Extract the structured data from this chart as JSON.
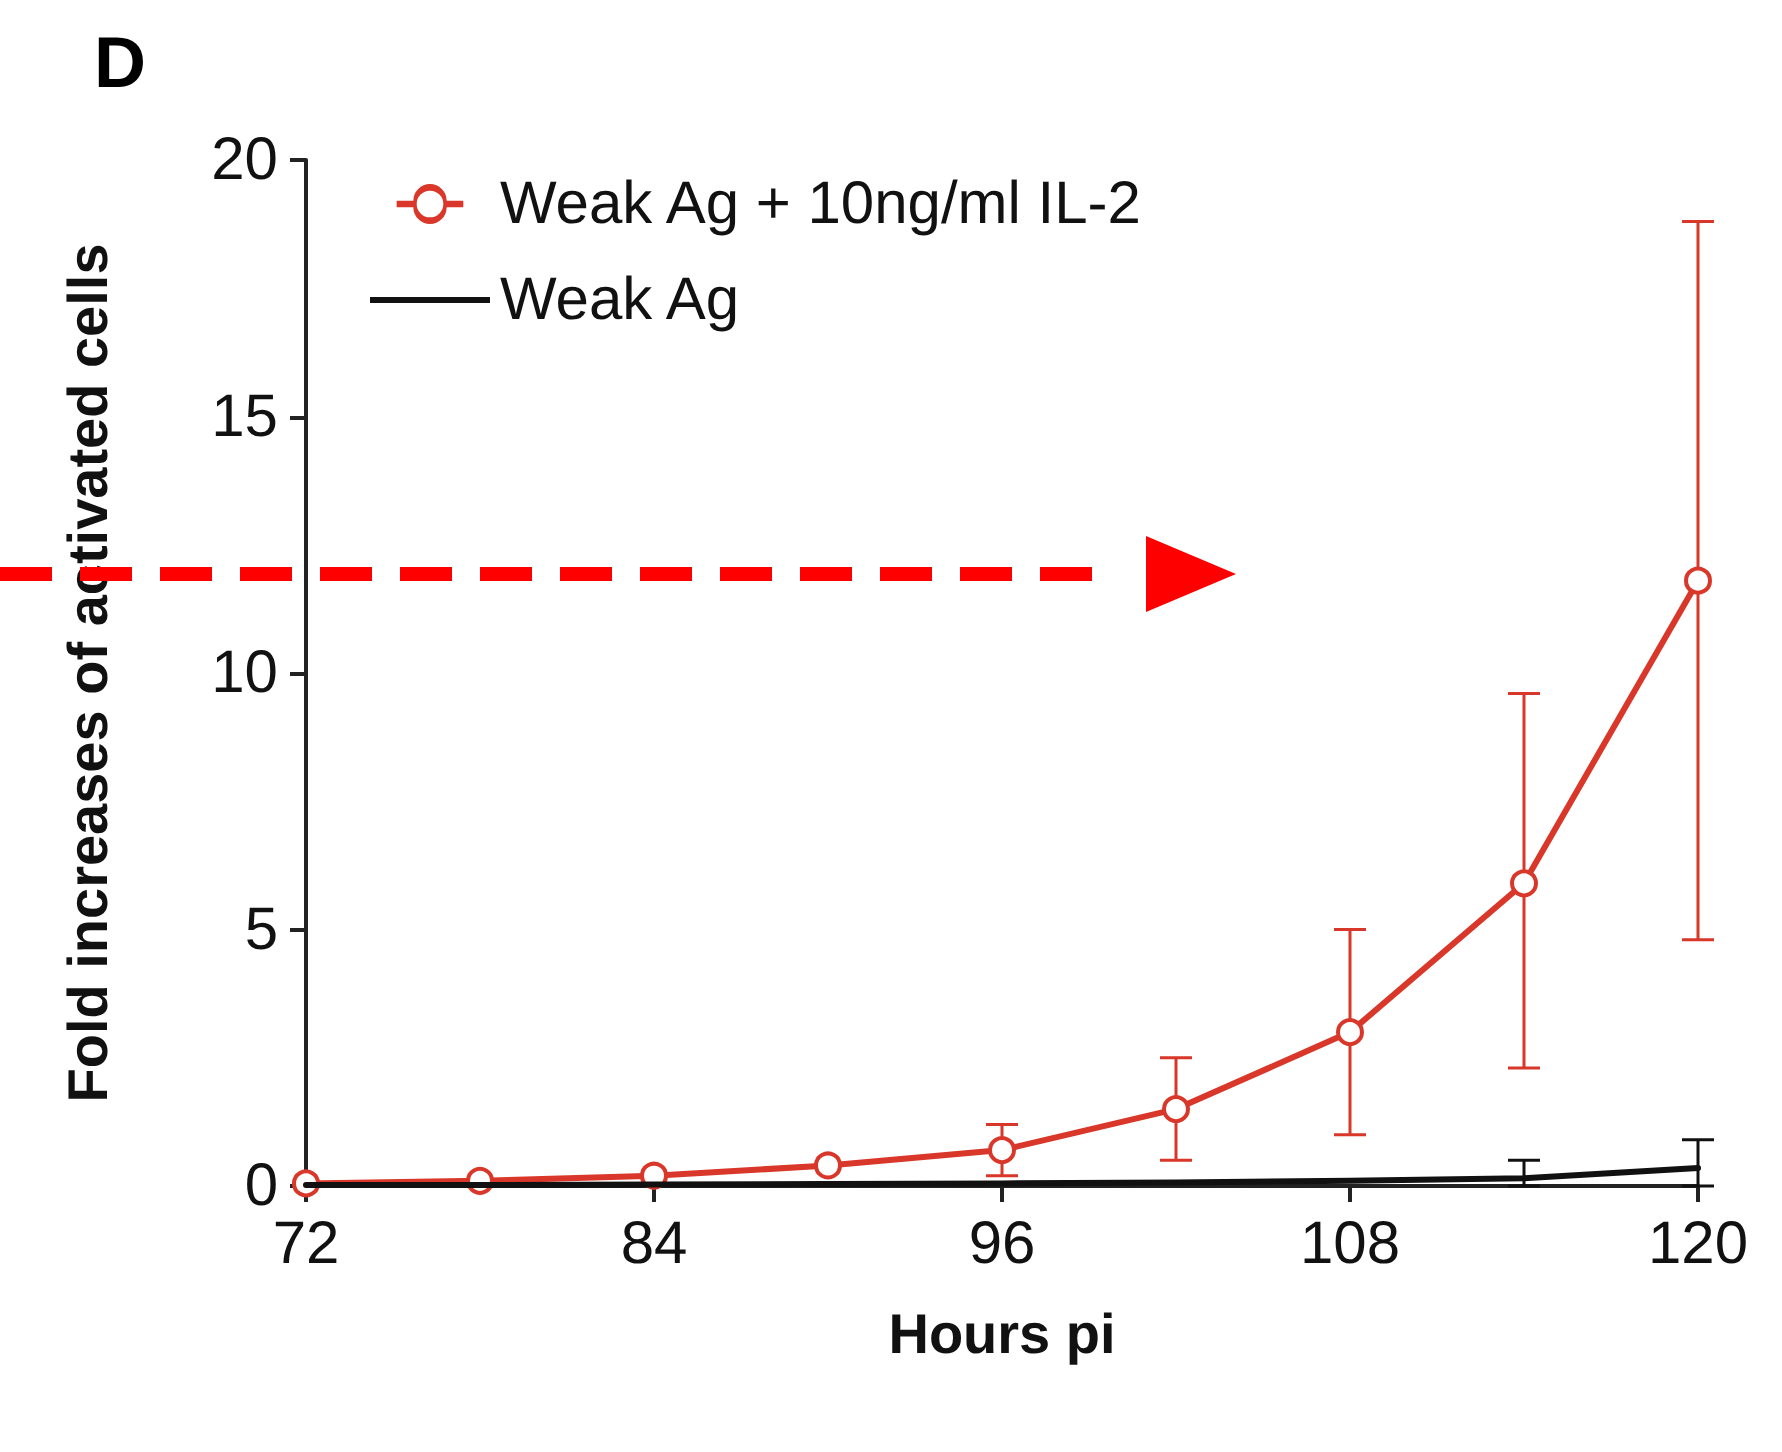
{
  "chart_data": {
    "type": "line",
    "title": "D",
    "xlabel": "Hours pi",
    "ylabel": "Fold increases of activated cells",
    "x": [
      72,
      78,
      84,
      90,
      96,
      102,
      108,
      114,
      120
    ],
    "series": [
      {
        "name": "Weak Ag + 10ng/ml IL-2",
        "color": "#d9372a",
        "marker": "circle",
        "values": [
          0.05,
          0.1,
          0.2,
          0.4,
          0.7,
          1.5,
          3.0,
          5.9,
          11.8
        ],
        "errors": [
          null,
          null,
          null,
          null,
          [
            0.2,
            1.2
          ],
          [
            0.5,
            2.5
          ],
          [
            1.0,
            5.0
          ],
          [
            2.3,
            9.6
          ],
          [
            4.8,
            18.8
          ]
        ]
      },
      {
        "name": "Weak Ag",
        "color": "#111111",
        "marker": "none",
        "values": [
          0.02,
          0.02,
          0.03,
          0.04,
          0.05,
          0.07,
          0.1,
          0.15,
          0.35
        ],
        "errors": [
          null,
          null,
          null,
          null,
          null,
          null,
          null,
          [
            0,
            0.5
          ],
          [
            0,
            0.9
          ]
        ]
      }
    ],
    "xlim": [
      72,
      120
    ],
    "xticks": [
      72,
      84,
      96,
      108,
      120
    ],
    "ylim": [
      0,
      20
    ],
    "yticks": [
      0,
      5,
      10,
      15,
      20
    ],
    "grid": false,
    "legend": "top left",
    "line_style": "solid"
  }
}
